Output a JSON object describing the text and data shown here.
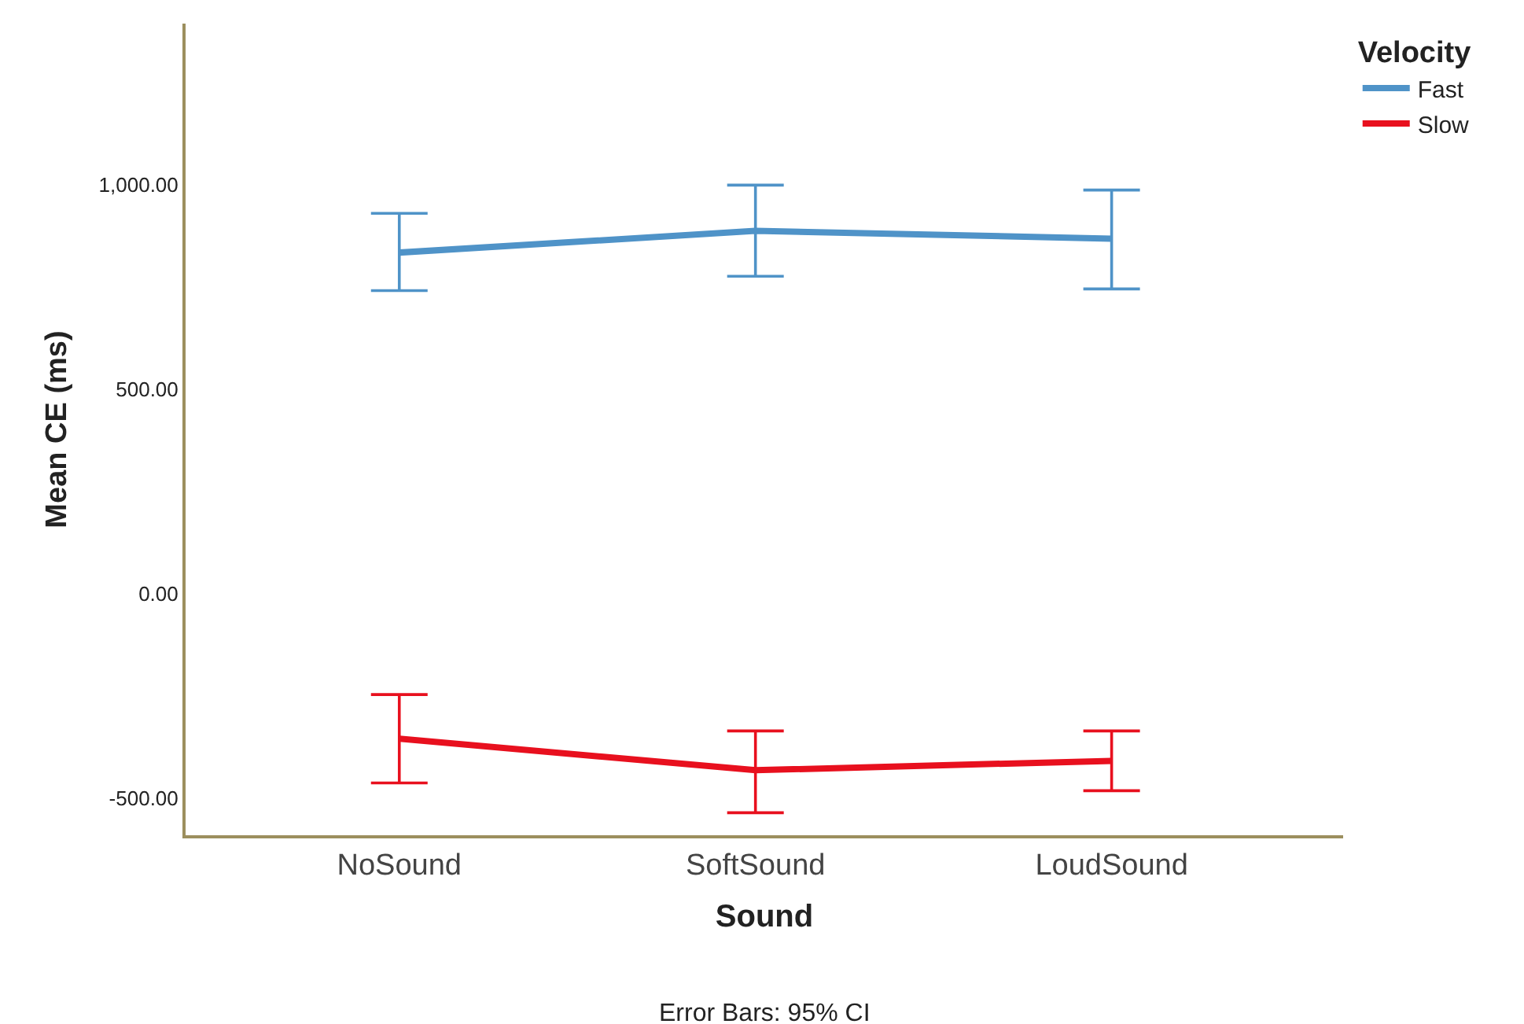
{
  "chart_data": {
    "type": "line",
    "xlabel": "Sound",
    "ylabel": "Mean CE (ms)",
    "legend_title": "Velocity",
    "categories": [
      "NoSound",
      "SoftSound",
      "LoudSound"
    ],
    "series": [
      {
        "name": "Fast",
        "color": "#4f93c8",
        "values": [
          835,
          888,
          869
        ],
        "errors": [
          [
            742,
            931
          ],
          [
            777,
            1000
          ],
          [
            746,
            988
          ]
        ]
      },
      {
        "name": "Slow",
        "color": "#e8101e",
        "values": [
          -354,
          -431,
          -408
        ],
        "errors": [
          [
            -462,
            -246
          ],
          [
            -535,
            -335
          ],
          [
            -481,
            -335
          ]
        ]
      }
    ],
    "ylim": [
      -590,
      1395
    ],
    "yticks": [
      {
        "value": -500,
        "label": "-500.00"
      },
      {
        "value": 0,
        "label": "0.00"
      },
      {
        "value": 500,
        "label": "500.00"
      },
      {
        "value": 1000,
        "label": "1,000.00"
      }
    ],
    "legend": "top right",
    "marker": "none",
    "line_style": "solid",
    "annotations": [
      "Error Bars: 95% CI"
    ]
  }
}
